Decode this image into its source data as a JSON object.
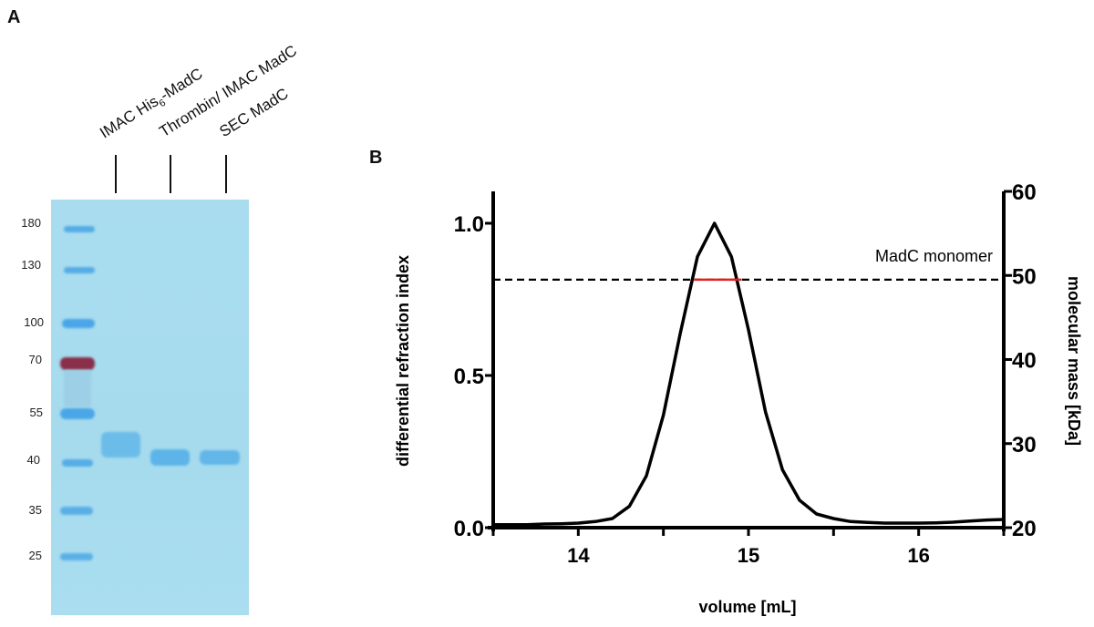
{
  "panel_a": {
    "letter": "A",
    "lanes": [
      {
        "label": "IMAC His",
        "sub": "6",
        "suffix": "-MadC"
      },
      {
        "label": "Thrombin/ IMAC MadC"
      },
      {
        "label": "SEC MadC"
      }
    ],
    "marker_labels": [
      "180",
      "130",
      "100",
      "70",
      "55",
      "40",
      "35",
      "25"
    ],
    "colors": {
      "gel": "#a8dcee",
      "ladder": "#4aa3e0",
      "ladder_70": "#8a2f4a",
      "sample_band": "#5cb4e6"
    }
  },
  "chart_data": {
    "type": "line",
    "panel_letter": "B",
    "xlabel": "volume [mL]",
    "ylabel": "differential refraction index",
    "y2label": "molecular mass [kDa]",
    "xlim": [
      13.5,
      16.5
    ],
    "ylim": [
      0,
      1.1
    ],
    "y2lim": [
      20,
      60
    ],
    "xticks": [
      "14",
      "15",
      "16"
    ],
    "yticks": [
      "0.0",
      "0.5",
      "1.0"
    ],
    "y2ticks": [
      "20",
      "30",
      "40",
      "50",
      "60"
    ],
    "grid": false,
    "series": [
      {
        "axis": "left",
        "color": "#000000",
        "x": [
          13.5,
          13.6,
          13.7,
          13.8,
          13.9,
          14.0,
          14.1,
          14.2,
          14.3,
          14.4,
          14.5,
          14.6,
          14.7,
          14.8,
          14.9,
          15.0,
          15.1,
          15.2,
          15.3,
          15.4,
          15.5,
          15.6,
          15.7,
          15.8,
          15.9,
          16.0,
          16.1,
          16.2,
          16.3,
          16.4,
          16.5
        ],
        "y": [
          0.01,
          0.01,
          0.01,
          0.012,
          0.013,
          0.015,
          0.02,
          0.03,
          0.07,
          0.17,
          0.37,
          0.64,
          0.89,
          1.0,
          0.89,
          0.65,
          0.38,
          0.19,
          0.09,
          0.045,
          0.03,
          0.02,
          0.017,
          0.015,
          0.015,
          0.015,
          0.016,
          0.018,
          0.022,
          0.025,
          0.027
        ]
      },
      {
        "axis": "right",
        "color": "#e0201c",
        "x": [
          14.68,
          14.96
        ],
        "y": [
          49.5,
          49.5
        ]
      }
    ],
    "reference_line": {
      "axis": "right",
      "value": 49.5,
      "style": "dashed",
      "label": "MadC monomer"
    }
  }
}
